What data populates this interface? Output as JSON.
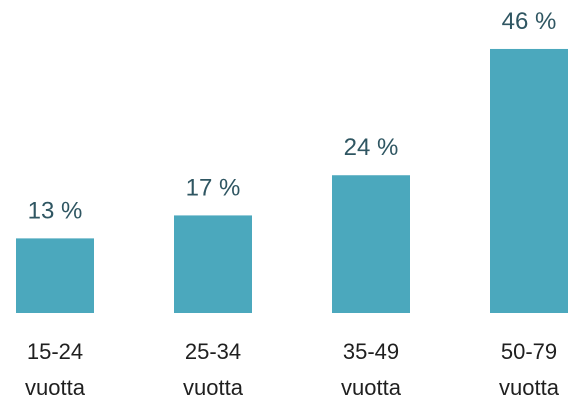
{
  "chart_data": {
    "type": "bar",
    "categories": [
      "15-24\nvuotta",
      "25-34\nvuotta",
      "35-49\nvuotta",
      "50-79\nvuotta"
    ],
    "values": [
      13,
      17,
      24,
      46
    ],
    "value_labels": [
      "13 %",
      "17 %",
      "24 %",
      "46 %"
    ],
    "color": "#4ba8bd"
  }
}
